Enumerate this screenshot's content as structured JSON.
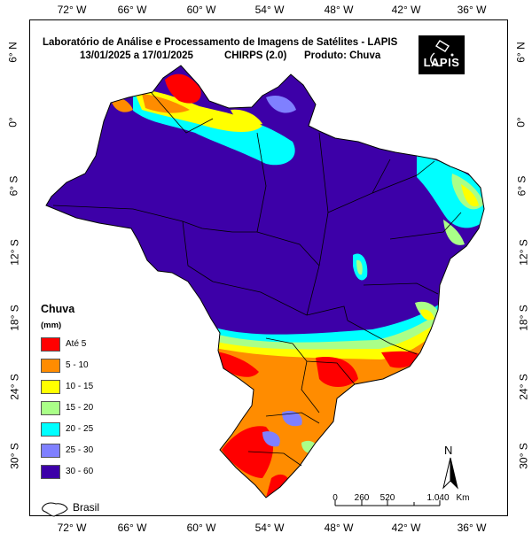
{
  "map": {
    "title_line1": "Laboratório de Análise e Processamento de Imagens de Satélites - LAPIS",
    "date_range": "13/01/2025  a 17/01/2025",
    "product_model": "CHIRPS (2.0)",
    "product": "Produto: Chuva",
    "logo_text": "LAPIS"
  },
  "axes": {
    "longitude_ticks": [
      "72° W",
      "66° W",
      "60° W",
      "54° W",
      "48° W",
      "42° W",
      "36° W"
    ],
    "latitude_ticks": [
      "6° N",
      "0°",
      "6° S",
      "12° S",
      "18° S",
      "24° S",
      "30° S"
    ]
  },
  "legend": {
    "title": "Chuva",
    "unit": "(mm)",
    "items": [
      {
        "label": "Até 5",
        "color": "#ff0000"
      },
      {
        "label": "5 - 10",
        "color": "#ff8c00"
      },
      {
        "label": "10 - 15",
        "color": "#ffff00"
      },
      {
        "label": "15 - 20",
        "color": "#aaff88"
      },
      {
        "label": "20 - 25",
        "color": "#00ffff"
      },
      {
        "label": "25 - 30",
        "color": "#7f80ff"
      },
      {
        "label": "30 - 60",
        "color": "#3d00a8"
      }
    ]
  },
  "inset": {
    "label": "Brasil"
  },
  "north_arrow": {
    "label": "N"
  },
  "scale_bar": {
    "labels": [
      "0",
      "260",
      "520",
      "1.040",
      "Km"
    ]
  },
  "colors": {
    "base": "#3d00a8",
    "frame": "#000000"
  }
}
